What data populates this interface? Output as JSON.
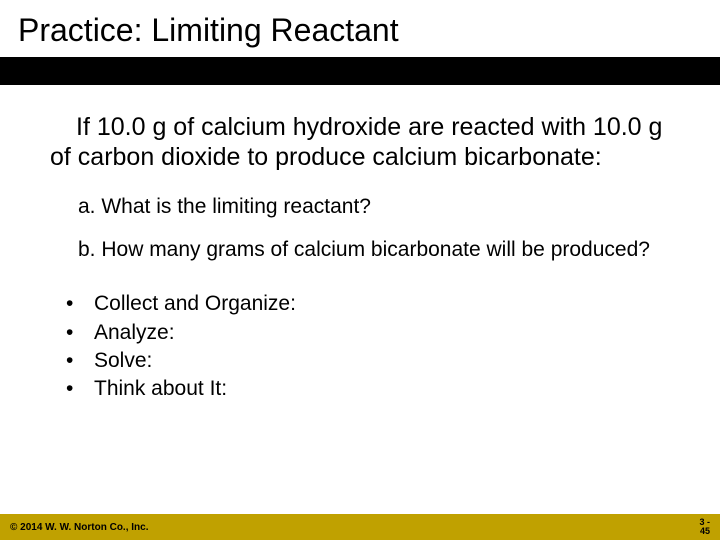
{
  "title": "Practice: Limiting Reactant",
  "intro": "If 10.0 g of calcium hydroxide are reacted with 10.0 g of carbon dioxide to produce calcium bicarbonate:",
  "questions": {
    "a": "a. What is the limiting reactant?",
    "b": "b. How many grams of calcium bicarbonate will be produced?"
  },
  "steps": [
    "Collect and Organize:",
    "Analyze:",
    "Solve:",
    "Think about It:"
  ],
  "footer": {
    "copyright": "© 2014 W. W. Norton Co., Inc.",
    "page_chapter": "3 -",
    "page_number": "45"
  },
  "colors": {
    "footer_bg": "#c0a100",
    "bar_bg": "#000000",
    "text": "#000000",
    "background": "#ffffff"
  }
}
